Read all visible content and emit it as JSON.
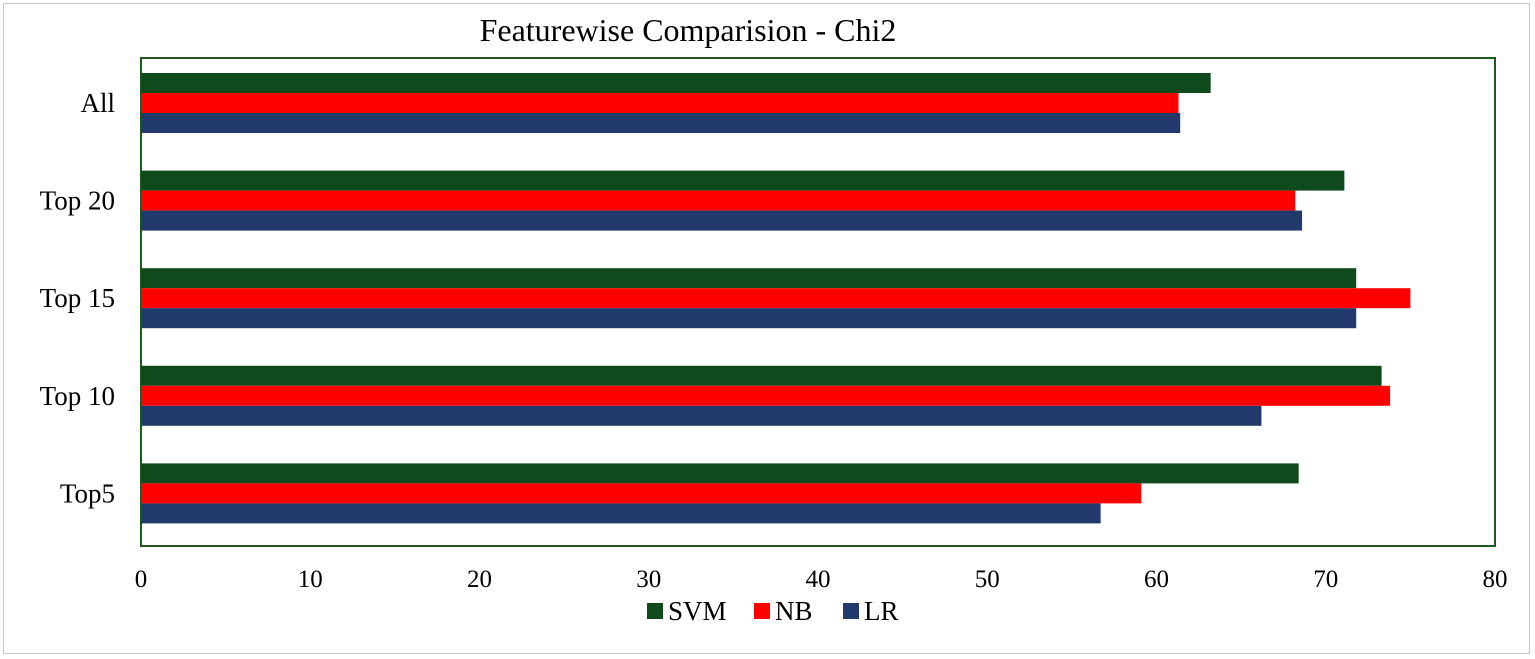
{
  "chart_data": {
    "type": "bar",
    "orientation": "horizontal",
    "title": "Featurewise Comparision - Chi2",
    "categories": [
      "All",
      "Top 20",
      "Top 15",
      "Top 10",
      "Top5"
    ],
    "series": [
      {
        "name": "SVM",
        "color": "#0f4a1d",
        "values": [
          63.2,
          71.1,
          71.8,
          73.3,
          68.4
        ]
      },
      {
        "name": "NB",
        "color": "#ff0000",
        "values": [
          61.3,
          68.2,
          75.0,
          73.8,
          59.1
        ]
      },
      {
        "name": "LR",
        "color": "#213a6b",
        "values": [
          61.4,
          68.6,
          71.8,
          66.2,
          56.7
        ]
      }
    ],
    "xlim": [
      0,
      80
    ],
    "xticks": [
      "0",
      "10",
      "20",
      "30",
      "40",
      "50",
      "60",
      "70",
      "80"
    ],
    "grid": false,
    "legend_position": "bottom",
    "plot_border_color": "#1d5a1d"
  }
}
